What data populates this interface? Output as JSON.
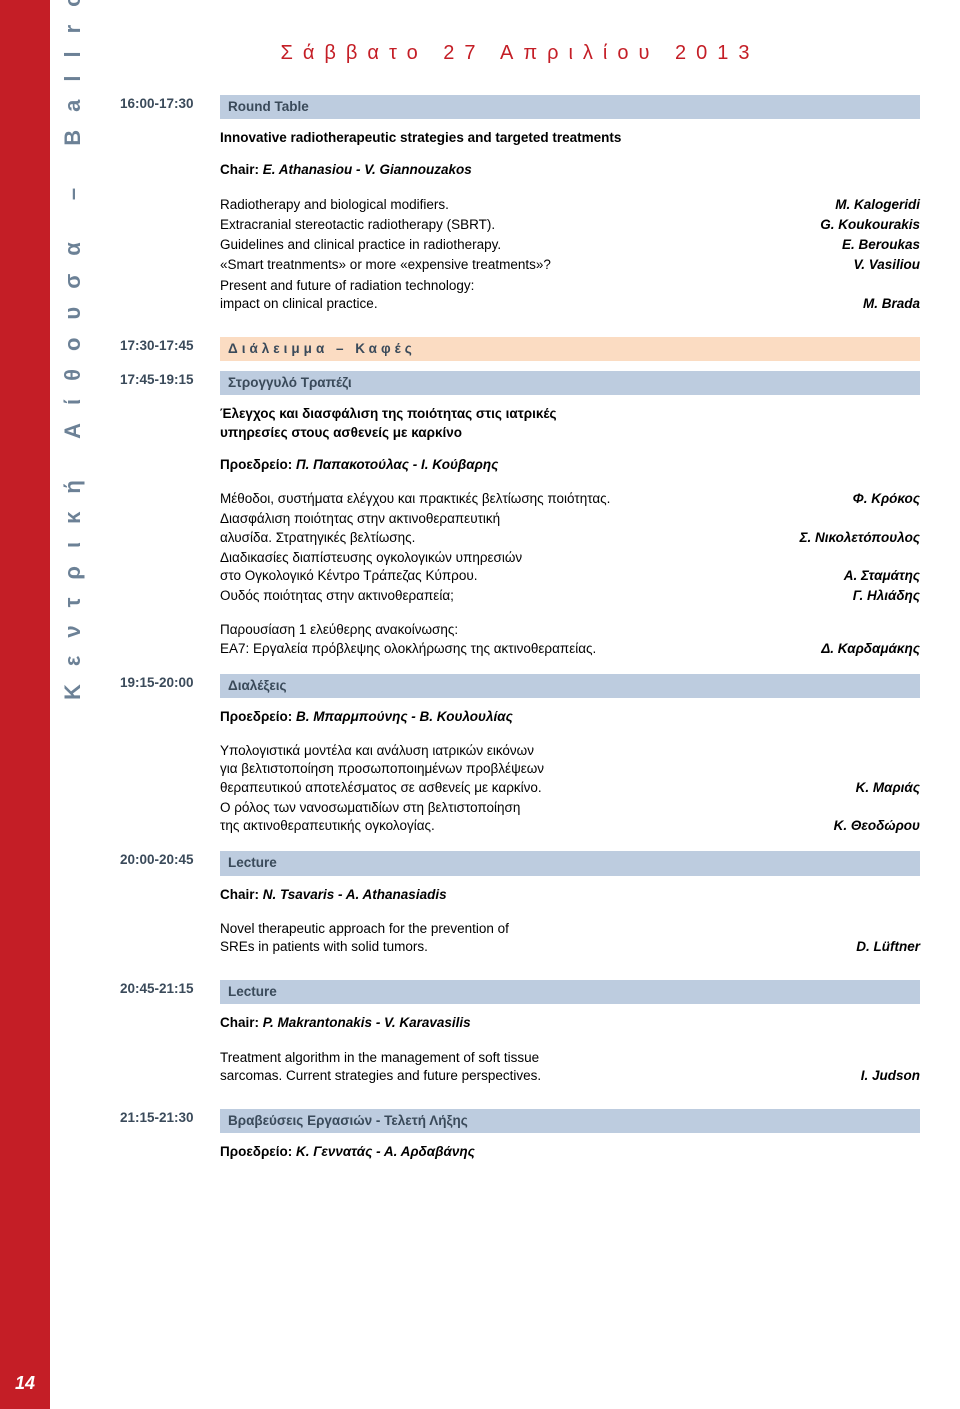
{
  "page_number": "14",
  "side_label": "Κεντρική Αίθουσα – Ballroom III",
  "page_title": "Σάββατο 27 Απριλίου 2013",
  "colors": {
    "red_stripe": "#c41e26",
    "side_text": "#6c8196",
    "bar_blue": "#bdccdf",
    "bar_peach": "#fbdcc2",
    "body_text": "#3a4a5a"
  },
  "s1": {
    "time": "16:00-17:30",
    "bar": "Round Table",
    "title": "Innovative radiotherapeutic strategies and targeted treatments",
    "chair_label": "Chair: ",
    "chair_names": "E. Athanasiou - V. Giannouzakos",
    "i1_t": "Radiotherapy and biological modifiers.",
    "i1_a": "M. Kalogeridi",
    "i2_t": "Extracranial stereotactic radiotherapy (SBRT).",
    "i2_a": "G. Koukourakis",
    "i3_t": "Guidelines and clinical practice in radiotherapy.",
    "i3_a": "E. Beroukas",
    "i4_t": "«Smart treatnments» or more «expensive treatments»?",
    "i4_a": "V. Vasiliou",
    "i5_t1": "Present and future of radiation technology:",
    "i5_t2": "impact on clinical practice.",
    "i5_a": "M. Brada"
  },
  "break": {
    "time": "17:30-17:45",
    "bar": "Διάλειμμα – Καφές"
  },
  "s2": {
    "time": "17:45-19:15",
    "bar": "Στρογγυλό Τραπέζι",
    "title_l1": "Έλεγχος και διασφάλιση της ποιότητας στις ιατρικές",
    "title_l2": "υπηρεσίες στους ασθενείς με καρκίνο",
    "chair_label": "Προεδρείο: ",
    "chair_names": "Π. Παπακοτούλας - Ι. Κούβαρης",
    "i1_t": "Μέθοδοι, συστήματα ελέγχου και πρακτικές βελτίωσης ποιότητας.",
    "i1_a": "Φ. Κρόκος",
    "i2_t1": "Διασφάλιση ποιότητας στην ακτινοθεραπευτική",
    "i2_t2": "αλυσίδα. Στρατηγικές βελτίωσης.",
    "i2_a": "Σ. Νικολετόπουλος",
    "i3_t1": "Διαδικασίες διαπίστευσης ογκολογικών υπηρεσιών",
    "i3_t2": "στο Ογκολογικό Κέντρο Τράπεζας Κύπρου.",
    "i3_a": "Α. Σταμάτης",
    "i4_t": "Ουδός ποιότητας στην ακτινοθεραπεία;",
    "i4_a": "Γ. Ηλιάδης",
    "fp_t1": "Παρουσίαση 1 ελεύθερης ανακοίνωσης:",
    "fp_t2": "ΕΑ7: Εργαλεία πρόβλεψης ολοκλήρωσης της ακτινοθεραπείας.",
    "fp_a": "Δ. Καρδαμάκης"
  },
  "s3": {
    "time": "19:15-20:00",
    "bar": "Διαλέξεις",
    "chair_label": "Προεδρείο: ",
    "chair_names": "Β. Μπαρμπούνης - Β. Κουλουλίας",
    "i1_t1": "Υπολογιστικά μοντέλα και ανάλυση ιατρικών εικόνων",
    "i1_t2": "για βελτιστοποίηση προσωποποιημένων προβλέψεων",
    "i1_t3": "θεραπευτικού αποτελέσματος σε ασθενείς με καρκίνο.",
    "i1_a": "Κ. Μαριάς",
    "i2_t1": "Ο ρόλος των νανοσωματιδίων στη βελτιστοποίηση",
    "i2_t2": "της ακτινοθεραπευτικής ογκολογίας.",
    "i2_a": "Κ. Θεοδώρου"
  },
  "s4": {
    "time": "20:00-20:45",
    "bar": "Lecture",
    "chair_label": "Chair: ",
    "chair_names": "N. Tsavaris - A. Athanasiadis",
    "i1_t1": "Novel therapeutic approach for the prevention of",
    "i1_t2": "SREs in patients with solid tumors.",
    "i1_a": "D. Lüftner"
  },
  "s5": {
    "time": "20:45-21:15",
    "bar": "Lecture",
    "chair_label": "Chair: ",
    "chair_names": "P. Makrantonakis - V. Karavasilis",
    "i1_t1": "Treatment algorithm in the management of soft tissue",
    "i1_t2": "sarcomas. Current strategies and future perspectives.",
    "i1_a": "I. Judson"
  },
  "s6": {
    "time": "21:15-21:30",
    "bar": "Βραβεύσεις Εργασιών - Τελετή Λήξης",
    "chair_label": "Προεδρείο: ",
    "chair_names": "Κ. Γεννατάς - Α. Αρδαβάνης"
  }
}
